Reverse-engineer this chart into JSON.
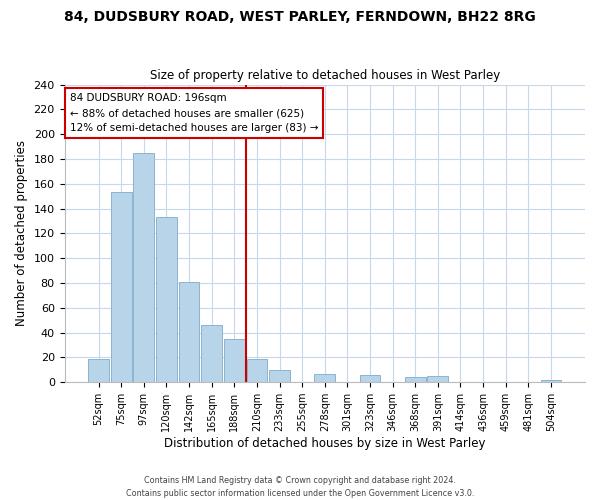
{
  "title": "84, DUDSBURY ROAD, WEST PARLEY, FERNDOWN, BH22 8RG",
  "subtitle": "Size of property relative to detached houses in West Parley",
  "xlabel": "Distribution of detached houses by size in West Parley",
  "ylabel": "Number of detached properties",
  "bar_labels": [
    "52sqm",
    "75sqm",
    "97sqm",
    "120sqm",
    "142sqm",
    "165sqm",
    "188sqm",
    "210sqm",
    "233sqm",
    "255sqm",
    "278sqm",
    "301sqm",
    "323sqm",
    "346sqm",
    "368sqm",
    "391sqm",
    "414sqm",
    "436sqm",
    "459sqm",
    "481sqm",
    "504sqm"
  ],
  "bar_values": [
    19,
    153,
    185,
    133,
    81,
    46,
    35,
    19,
    10,
    0,
    7,
    0,
    6,
    0,
    4,
    5,
    0,
    0,
    0,
    0,
    2
  ],
  "bar_color": "#b8d4e8",
  "bar_edge_color": "#8ab4d4",
  "vline_color": "#cc0000",
  "ylim": [
    0,
    240
  ],
  "yticks": [
    0,
    20,
    40,
    60,
    80,
    100,
    120,
    140,
    160,
    180,
    200,
    220,
    240
  ],
  "annotation_title": "84 DUDSBURY ROAD: 196sqm",
  "annotation_line1": "← 88% of detached houses are smaller (625)",
  "annotation_line2": "12% of semi-detached houses are larger (83) →",
  "annotation_box_color": "#ffffff",
  "annotation_box_edge": "#cc0000",
  "footer1": "Contains HM Land Registry data © Crown copyright and database right 2024.",
  "footer2": "Contains public sector information licensed under the Open Government Licence v3.0.",
  "background_color": "#ffffff",
  "grid_color": "#c8d8ec"
}
